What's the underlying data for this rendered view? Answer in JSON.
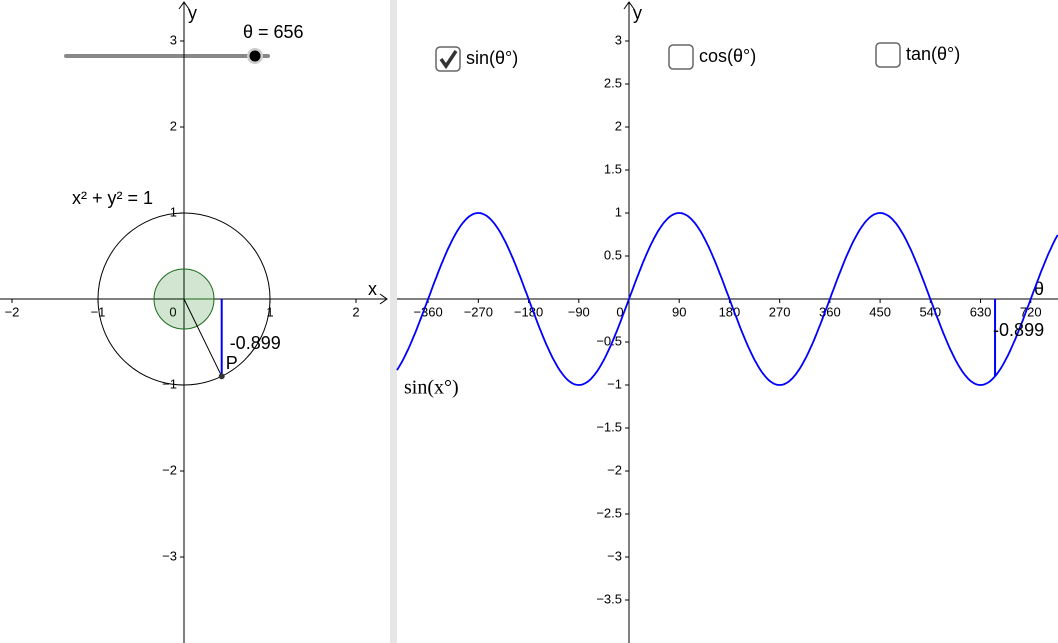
{
  "slider": {
    "label": "θ = 656"
  },
  "theta": 656,
  "unit_circle": {
    "equation": "x² + y² = 1",
    "point_label": "P",
    "sin_value": -0.899,
    "sin_label": "-0.899",
    "x_axis_label": "x",
    "y_axis_label": "y",
    "xticks": [
      {
        "value": -2,
        "label": "−2"
      },
      {
        "value": -1,
        "label": "−1"
      },
      0,
      1,
      2
    ],
    "yticks": [
      3,
      2,
      1,
      {
        "value": -1,
        "label": "−1"
      },
      {
        "value": -2,
        "label": "−2"
      },
      {
        "value": -3,
        "label": "−3"
      }
    ]
  },
  "graph": {
    "x_axis_label": "θ",
    "y_axis_label": "y",
    "curve_label": "sin(x°)",
    "value": -0.899,
    "value_label": "-0.899",
    "xticks": [
      {
        "value": -360,
        "label": "−360"
      },
      {
        "value": -270,
        "label": "−270"
      },
      {
        "value": -180,
        "label": "−180"
      },
      {
        "value": -90,
        "label": "−90"
      },
      0,
      90,
      180,
      270,
      360,
      450,
      540,
      630,
      720
    ],
    "yticks": [
      3,
      2.5,
      2,
      1.5,
      1,
      0.5,
      {
        "value": -0.5,
        "label": "−0.5"
      },
      {
        "value": -1,
        "label": "−1"
      },
      {
        "value": -1.5,
        "label": "−1.5"
      },
      {
        "value": -2,
        "label": "−2"
      },
      {
        "value": -2.5,
        "label": "−2.5"
      },
      {
        "value": -3,
        "label": "−3"
      },
      {
        "value": -3.5,
        "label": "−3.5"
      }
    ]
  },
  "checkboxes": [
    {
      "label": "sin(θ°)",
      "checked": true
    },
    {
      "label": "cos(θ°)",
      "checked": false
    },
    {
      "label": "tan(θ°)",
      "checked": false
    }
  ]
}
